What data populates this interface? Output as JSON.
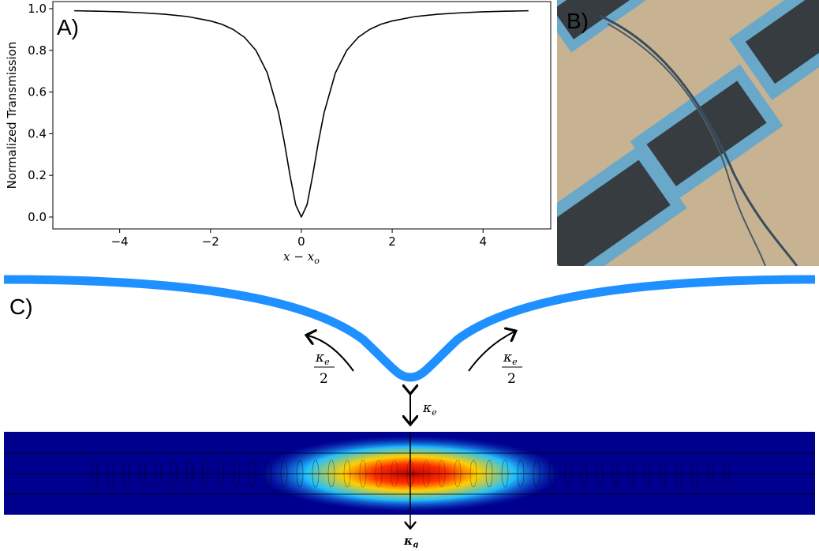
{
  "chart_data": {
    "type": "line",
    "ylabel": "Normalized Transmission",
    "xlabel": {
      "main": "x − x",
      "sub": "o"
    },
    "x": [
      -5,
      -4.5,
      -4,
      -3.5,
      -3,
      -2.5,
      -2,
      -1.75,
      -1.5,
      -1.25,
      -1,
      -0.75,
      -0.5,
      -0.375,
      -0.25,
      -0.125,
      0,
      0.125,
      0.25,
      0.375,
      0.5,
      0.75,
      1,
      1.25,
      1.5,
      1.75,
      2,
      2.5,
      3,
      3.5,
      4,
      4.5,
      5
    ],
    "values": [
      0.99,
      0.988,
      0.985,
      0.98,
      0.973,
      0.962,
      0.941,
      0.925,
      0.9,
      0.862,
      0.8,
      0.692,
      0.5,
      0.36,
      0.2,
      0.059,
      0,
      0.059,
      0.2,
      0.36,
      0.5,
      0.692,
      0.8,
      0.862,
      0.9,
      0.925,
      0.941,
      0.962,
      0.973,
      0.98,
      0.985,
      0.988,
      0.99
    ],
    "color": "#000000",
    "xlim": [
      -5.47,
      5.49
    ],
    "ylim": [
      -0.057,
      1.034
    ],
    "xticks": [
      {
        "value": -4,
        "label": "−4"
      },
      {
        "value": -2,
        "label": "−2"
      },
      0,
      2,
      4
    ],
    "yticks": [
      {
        "value": 0,
        "label": "0.0"
      },
      0.2,
      0.4,
      0.6,
      0.8,
      {
        "value": 1,
        "label": "1.0"
      }
    ]
  },
  "panels": {
    "a": "A)",
    "b": "B)",
    "c": "C)"
  },
  "diagram": {
    "left_rate": {
      "symbol": "κ",
      "sub": "e",
      "denominator": "2"
    },
    "right_rate": {
      "symbol": "κ",
      "sub": "e",
      "denominator": "2"
    },
    "coupling_rate": {
      "symbol": "κ",
      "sub": "e"
    },
    "loss_rate": {
      "symbol": "κ",
      "sub": "g"
    }
  }
}
